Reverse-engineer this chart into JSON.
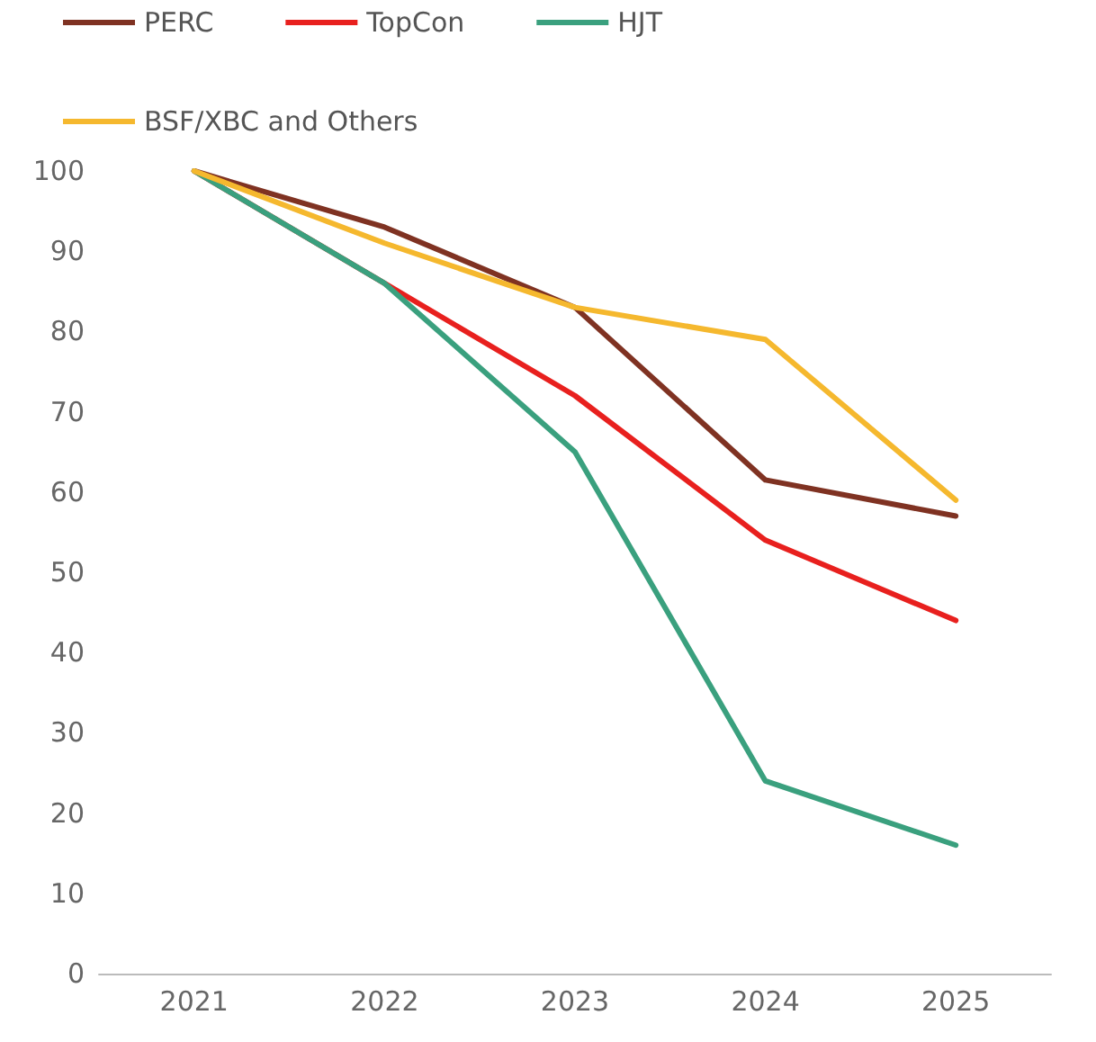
{
  "chart_data": {
    "type": "line",
    "categories": [
      "2021",
      "2022",
      "2023",
      "2024",
      "2025"
    ],
    "series": [
      {
        "name": "PERC",
        "color": "#7f3222",
        "values": [
          100,
          93,
          83,
          61.5,
          57
        ]
      },
      {
        "name": "TopCon",
        "color": "#e8201e",
        "values": [
          100,
          86,
          72,
          54,
          44
        ]
      },
      {
        "name": "HJT",
        "color": "#3aa07e",
        "values": [
          100,
          86,
          65,
          24,
          16
        ]
      },
      {
        "name": "BSF/XBC and Others",
        "color": "#f5b82e",
        "values": [
          100,
          91,
          83,
          79,
          59
        ]
      }
    ],
    "ylim": [
      0,
      100
    ],
    "yticks": [
      0,
      10,
      20,
      30,
      40,
      50,
      60,
      70,
      80,
      90,
      100
    ],
    "grid": false,
    "legend": "top",
    "marker": "none",
    "line_style": "solid"
  }
}
